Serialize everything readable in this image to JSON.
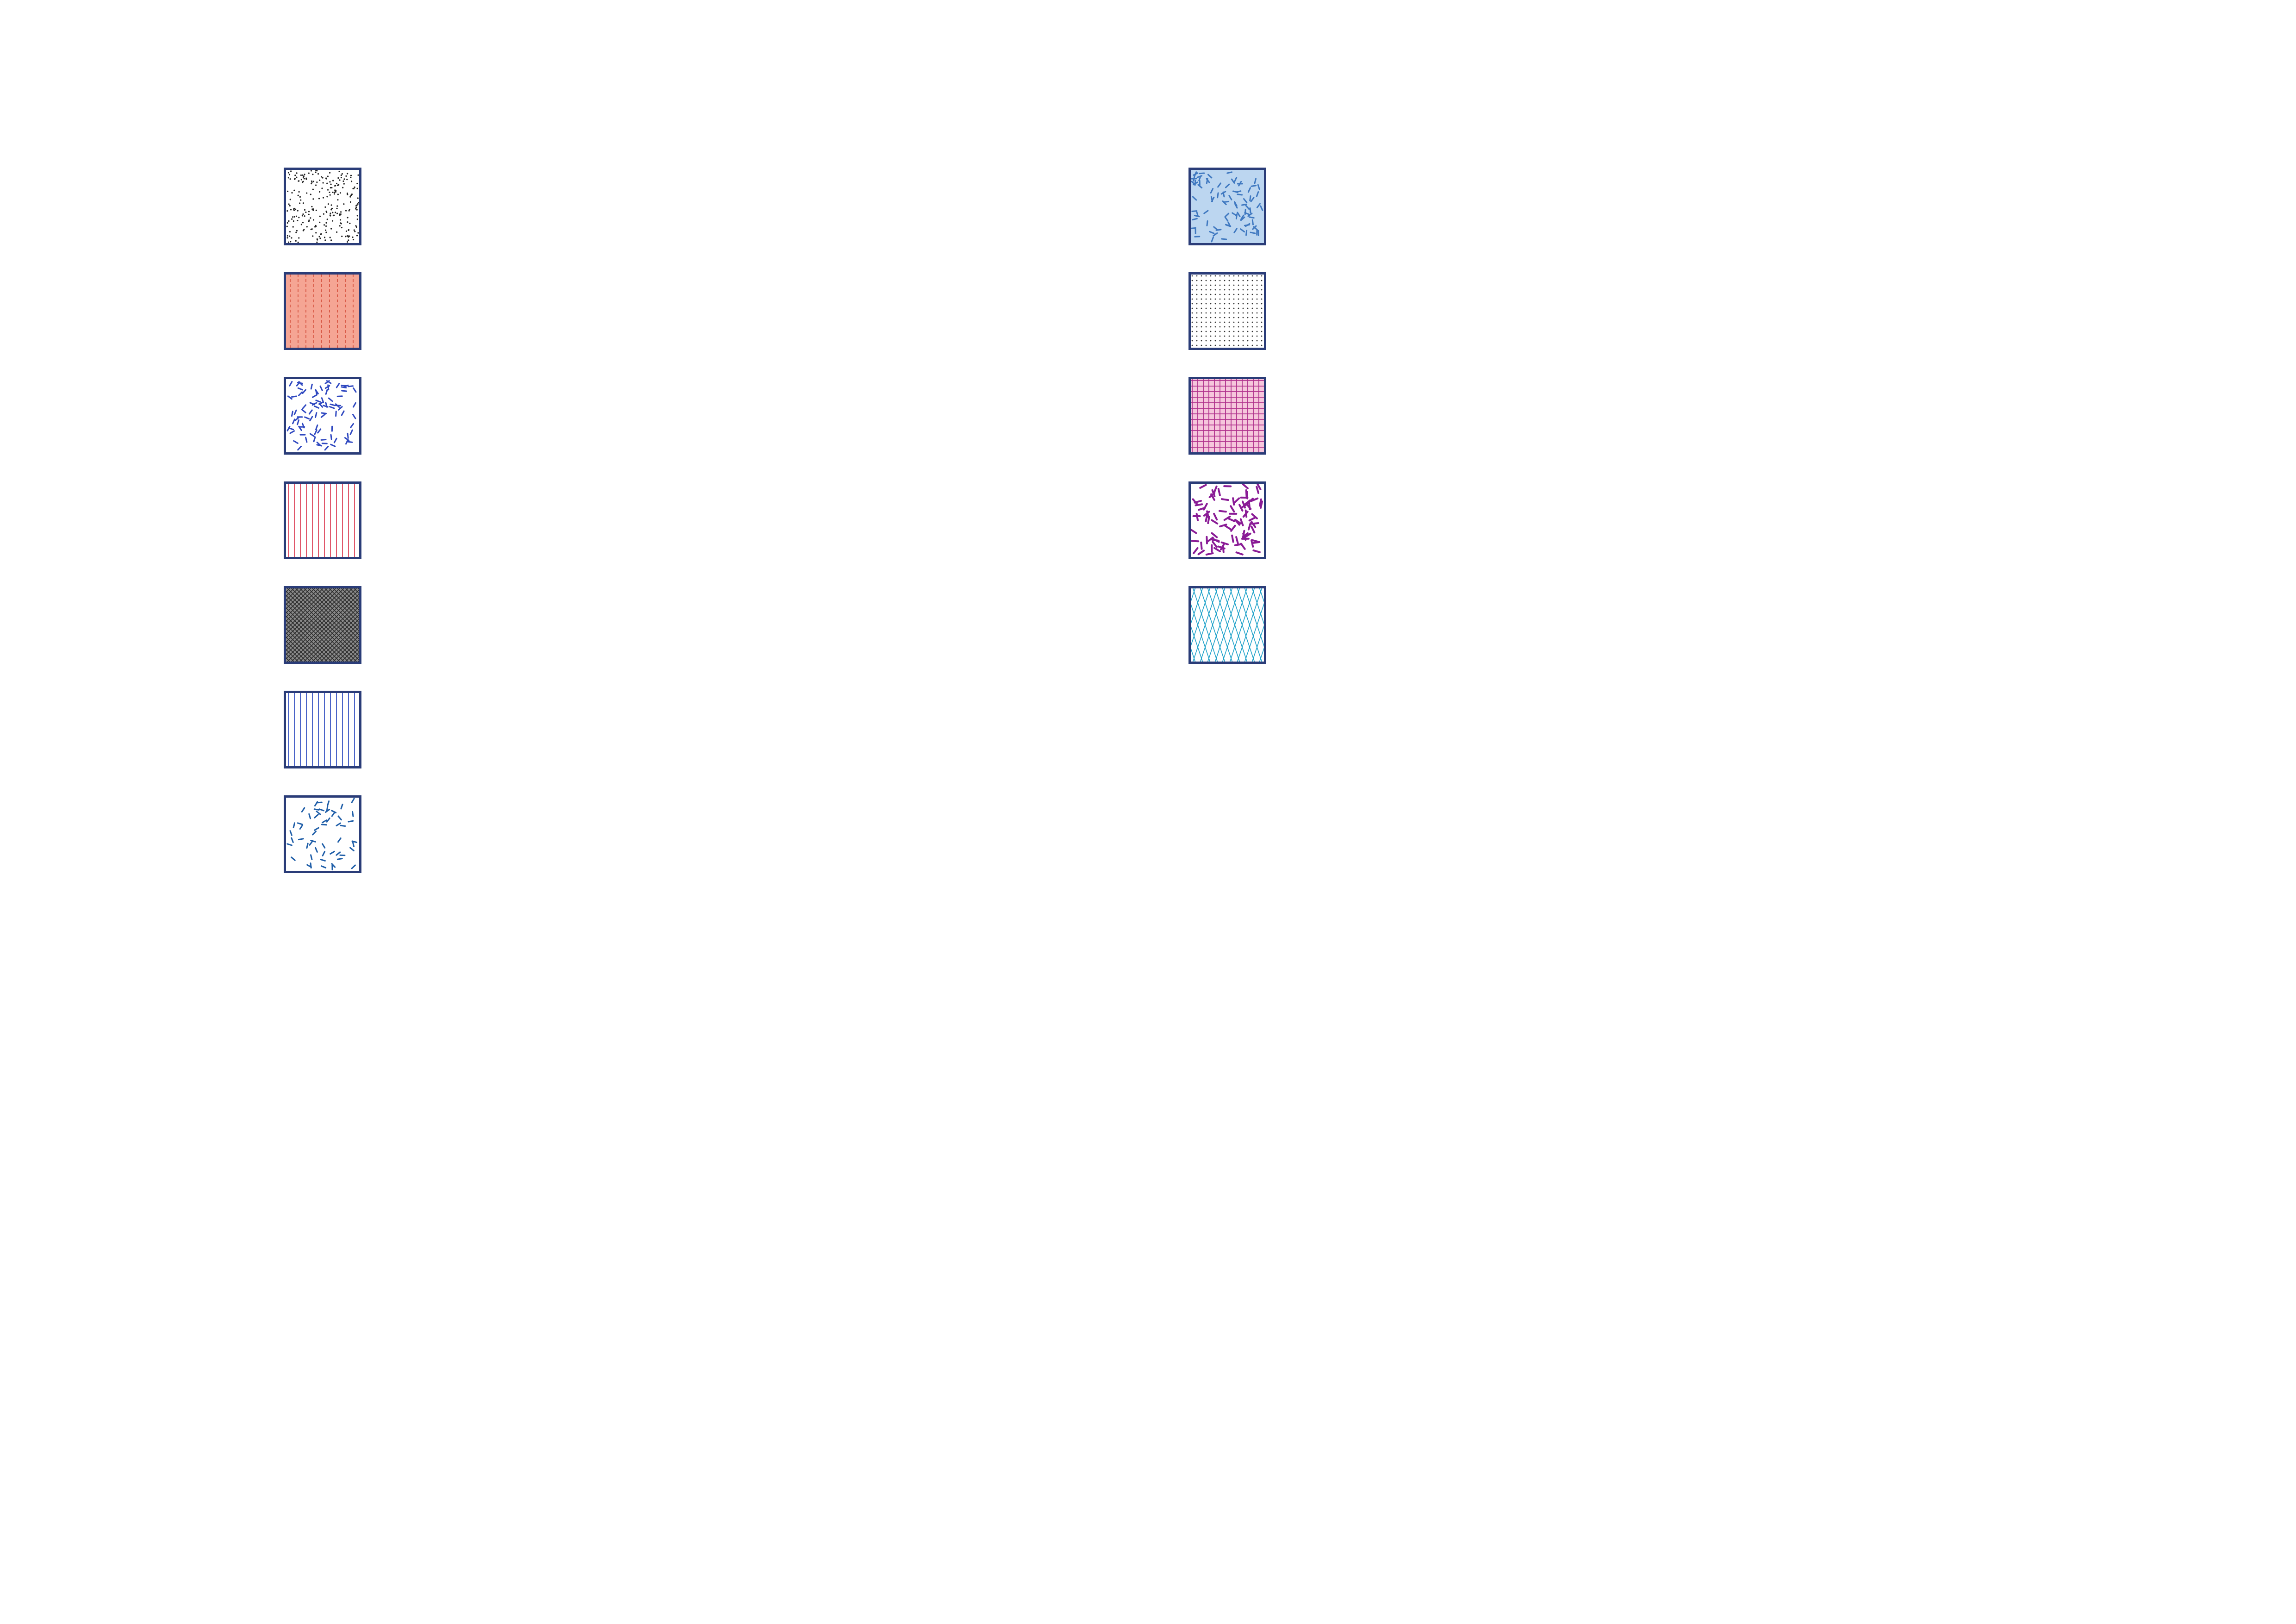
{
  "legend": {
    "border_color": "#2a3c78",
    "columns": [
      {
        "swatches": [
          {
            "pattern": "stipple",
            "fg": "#222222",
            "bg": "#ffffff"
          },
          {
            "pattern": "dashed-vertical",
            "fg": "#d95b48",
            "bg": "#f5a594"
          },
          {
            "pattern": "random-dashes",
            "fg": "#2f48c0",
            "bg": "#ffffff"
          },
          {
            "pattern": "vertical-lines",
            "fg": "#e0566a",
            "bg": "#ffffff"
          },
          {
            "pattern": "crosshatch-dense",
            "fg": "#2a2a2a",
            "bg": "#8a8a8a"
          },
          {
            "pattern": "vertical-lines",
            "fg": "#4a63c8",
            "bg": "#ffffff"
          },
          {
            "pattern": "sparse-dashes",
            "fg": "#1f5ea8",
            "bg": "#ffffff"
          }
        ]
      },
      {
        "swatches": [
          {
            "pattern": "random-dashes",
            "fg": "#3f78c0",
            "bg": "#bcd6f0"
          },
          {
            "pattern": "dot-grid",
            "fg": "#333333",
            "bg": "#ffffff"
          },
          {
            "pattern": "grid",
            "fg": "#b0308c",
            "bg": "#f6c6dc"
          },
          {
            "pattern": "thick-dashes",
            "fg": "#8a1c96",
            "bg": "#ffffff"
          },
          {
            "pattern": "diamond-lattice",
            "fg": "#1aa0c8",
            "bg": "#ffffff"
          }
        ]
      }
    ]
  }
}
